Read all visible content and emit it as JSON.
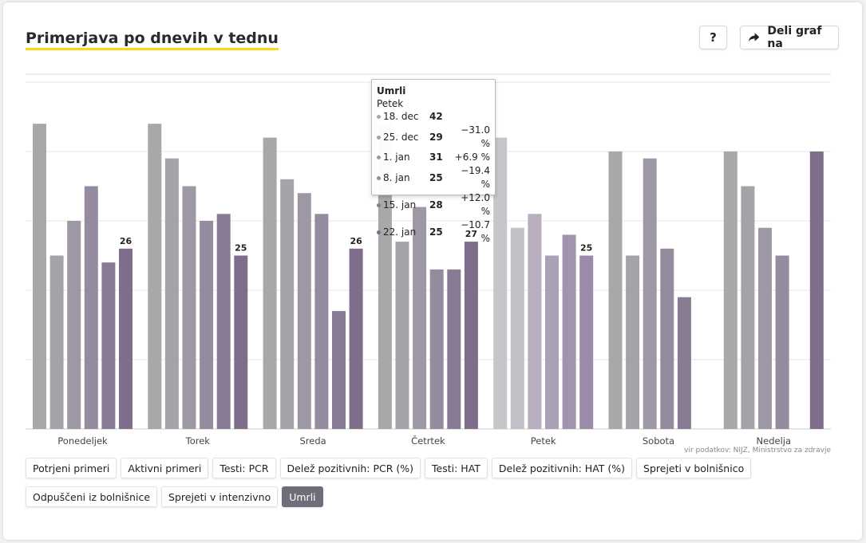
{
  "header": {
    "title": "Primerjava po dnevih v tednu",
    "help_label": "?",
    "share_label": "Deli graf na"
  },
  "source": "vir podatkov: NIJZ, Ministrstvo za zdravje",
  "tabs": [
    {
      "label": "Potrjeni primeri",
      "active": false
    },
    {
      "label": "Aktivni primeri",
      "active": false
    },
    {
      "label": "Testi: PCR",
      "active": false
    },
    {
      "label": "Delež pozitivnih: PCR (%)",
      "active": false
    },
    {
      "label": "Testi: HAT",
      "active": false
    },
    {
      "label": "Delež pozitivnih: HAT (%)",
      "active": false
    },
    {
      "label": "Sprejeti v bolnišnico",
      "active": false
    },
    {
      "label": "Odpuščeni iz bolnišnice",
      "active": false
    },
    {
      "label": "Sprejeti v intenzivno",
      "active": false
    },
    {
      "label": "Umrli",
      "active": true
    }
  ],
  "tooltip": {
    "title": "Umrli",
    "day": "Petek",
    "rows": [
      {
        "date": "18. dec",
        "value": "42",
        "change": ""
      },
      {
        "date": "25. dec",
        "value": "29",
        "change": "−31.0 %"
      },
      {
        "date": "1. jan",
        "value": "31",
        "change": "+6.9 %"
      },
      {
        "date": "8. jan",
        "value": "25",
        "change": "−19.4 %"
      },
      {
        "date": "15. jan",
        "value": "28",
        "change": "+12.0 %"
      },
      {
        "date": "22. jan",
        "value": "25",
        "change": "−10.7 %"
      }
    ]
  },
  "chart_data": {
    "type": "bar",
    "title": "Primerjava po dnevih v tednu",
    "categories": [
      "Ponedeljek",
      "Torek",
      "Sreda",
      "Četrtek",
      "Petek",
      "Sobota",
      "Nedelja"
    ],
    "series": [
      {
        "name": "18. dec",
        "color": "#a8a8aa",
        "values": [
          44,
          44,
          42,
          44,
          42,
          40,
          40
        ]
      },
      {
        "name": "25. dec",
        "color": "#a4a3a7",
        "values": [
          25,
          39,
          36,
          27,
          29,
          25,
          35
        ]
      },
      {
        "name": "1. jan",
        "color": "#9e98a4",
        "values": [
          30,
          35,
          34,
          32,
          31,
          39,
          29
        ]
      },
      {
        "name": "8. jan",
        "color": "#948b9e",
        "values": [
          35,
          30,
          31,
          23,
          25,
          26,
          25
        ]
      },
      {
        "name": "15. jan",
        "color": "#887c95",
        "values": [
          24,
          31,
          17,
          23,
          28,
          19,
          null
        ]
      },
      {
        "name": "22. jan",
        "color": "#7e6e8c",
        "values": [
          26,
          25,
          26,
          27,
          25,
          null,
          40
        ]
      }
    ],
    "data_labels": {
      "Ponedeljek": "26",
      "Torek": "25",
      "Sreda": "26",
      "Četrtek": "27",
      "Petek": "25"
    },
    "highlighted_category": "Petek",
    "ylim": [
      0,
      50
    ],
    "y_ticks_shown": false,
    "grid": true,
    "xlabel": "",
    "ylabel": ""
  },
  "colors": {
    "accent": "#ffd51a",
    "active_tab": "#6e6e78",
    "grid": "#e6e6e6"
  }
}
